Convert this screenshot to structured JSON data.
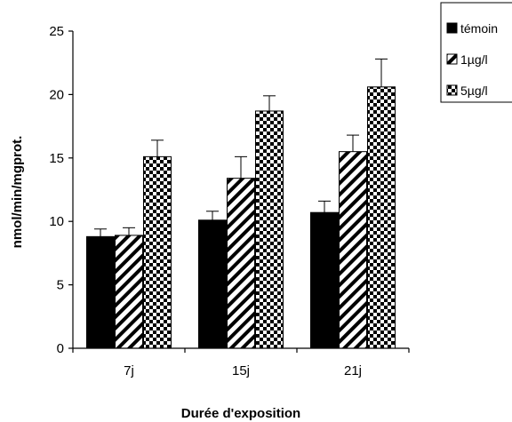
{
  "chart_data": {
    "type": "bar",
    "title": "",
    "xlabel": "Durée d'exposition",
    "ylabel": "nmol/min/mgprot.",
    "ylim": [
      0,
      25
    ],
    "yticks": [
      0,
      5,
      10,
      15,
      20,
      25
    ],
    "grid": false,
    "legend_position": "top-right",
    "categories": [
      "7j",
      "15j",
      "21j"
    ],
    "series": [
      {
        "name": "témoin",
        "pattern": "solid",
        "color": "#000000",
        "values": [
          8.8,
          10.1,
          10.7
        ],
        "errors": [
          0.6,
          0.7,
          0.9
        ]
      },
      {
        "name": "1µg/l",
        "pattern": "diagonal-stripes",
        "color": "#000000",
        "values": [
          8.9,
          13.4,
          15.5
        ],
        "errors": [
          0.6,
          1.7,
          1.3
        ]
      },
      {
        "name": "5µg/l",
        "pattern": "checkerboard",
        "color": "#000000",
        "values": [
          15.1,
          18.7,
          20.6
        ],
        "errors": [
          1.3,
          1.2,
          2.2
        ]
      }
    ]
  }
}
